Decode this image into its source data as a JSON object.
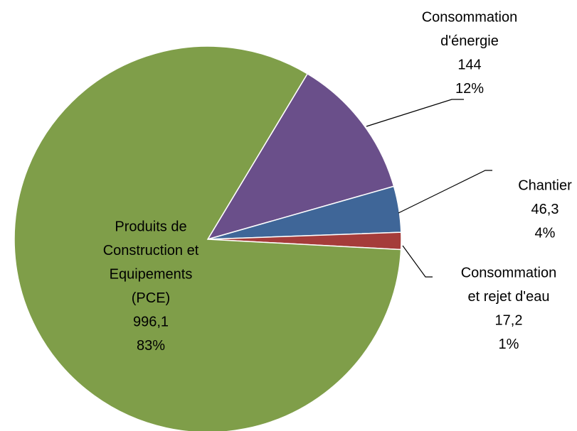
{
  "chart_data": {
    "type": "pie",
    "categories": [
      [
        "Consommation",
        "d'énergie"
      ],
      [
        "Chantier"
      ],
      [
        "Consommation",
        "et rejet d'eau"
      ],
      [
        "Produits de",
        "Construction et",
        "Equipements",
        "(PCE)"
      ]
    ],
    "values": [
      144,
      46.3,
      17.2,
      996.1
    ],
    "value_labels": [
      "144",
      "46,3",
      "17,2",
      "996,1"
    ],
    "percents": [
      12,
      4,
      1,
      83
    ],
    "percent_labels": [
      "12%",
      "4%",
      "1%",
      "83%"
    ],
    "colors": [
      "#6a4f8a",
      "#3f6698",
      "#a53c3a",
      "#7f9e49"
    ]
  }
}
